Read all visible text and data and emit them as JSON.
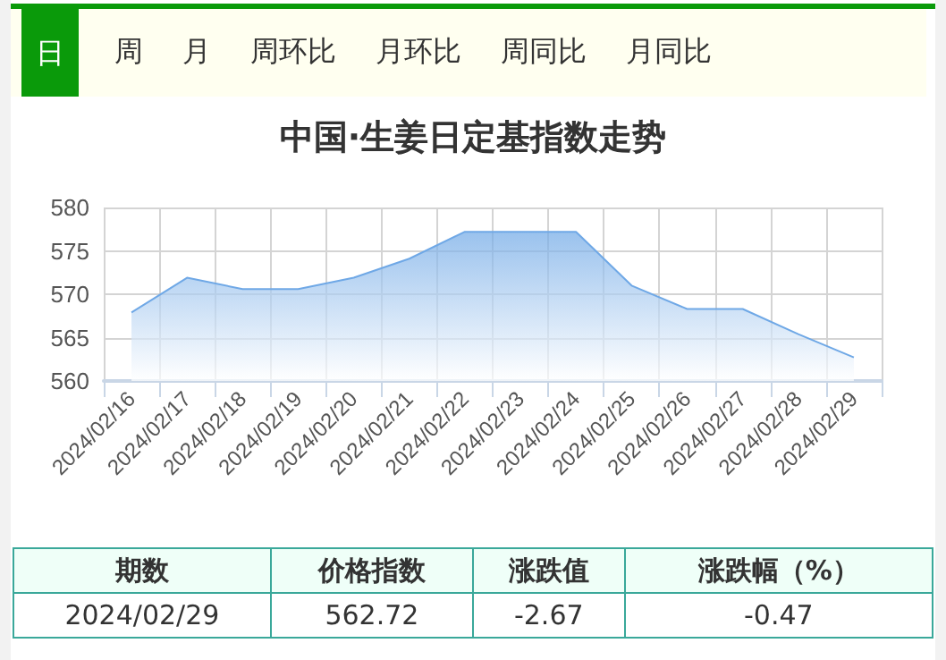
{
  "chart_data": {
    "type": "area",
    "title": "中国·生姜日定基指数走势",
    "categories": [
      "2024/02/16",
      "2024/02/17",
      "2024/02/18",
      "2024/02/19",
      "2024/02/20",
      "2024/02/21",
      "2024/02/22",
      "2024/02/23",
      "2024/02/24",
      "2024/02/25",
      "2024/02/26",
      "2024/02/27",
      "2024/02/28",
      "2024/02/29"
    ],
    "values": [
      567.9,
      571.9,
      570.6,
      570.6,
      571.9,
      574.1,
      577.2,
      577.2,
      577.2,
      571.0,
      568.3,
      568.3,
      565.4,
      562.72
    ],
    "color": "#6fa8e6",
    "ylim": [
      560,
      580
    ],
    "yticks": [
      560,
      565,
      570,
      575,
      580
    ],
    "grid": true,
    "marker": "none",
    "annotations": [
      "日",
      "周",
      "月",
      "周环比",
      "月环比",
      "周同比",
      "月同比",
      "期数",
      "价格指数",
      "涨跌值",
      "涨跌幅（%）",
      "2024/02/29",
      "562.72",
      "-2.67",
      "-0.47"
    ]
  }
}
